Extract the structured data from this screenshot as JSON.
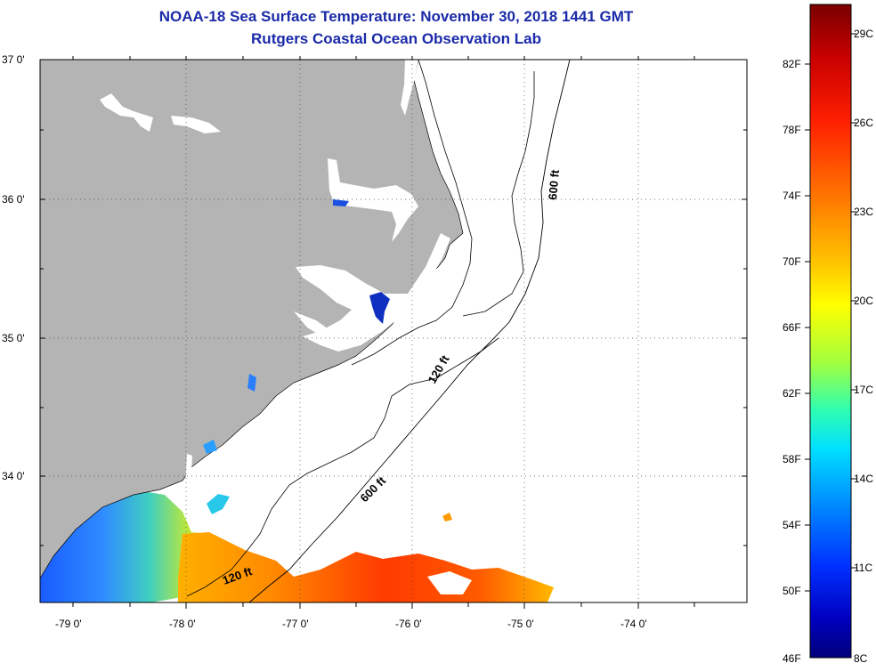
{
  "title": "NOAA-18 Sea Surface Temperature:  November 30, 2018 1441 GMT",
  "subtitle": "Rutgers Coastal Ocean Observation Lab",
  "axes": {
    "lat_labels": [
      "37 0'",
      "36 0'",
      "35 0'",
      "34 0'"
    ],
    "lon_labels": [
      "-79 0'",
      "-78 0'",
      "-77 0'",
      "-76 0'",
      "-75 0'",
      "-74 0'"
    ]
  },
  "contours": {
    "label_600_north": "600 ft",
    "label_120_mid": "120 ft",
    "label_600_south": "600 ft",
    "label_120_south": "120 ft"
  },
  "colorbar": {
    "fahrenheit_labels": [
      "82F",
      "78F",
      "74F",
      "70F",
      "66F",
      "62F",
      "58F",
      "54F",
      "50F",
      "46F"
    ],
    "celsius_labels": [
      "29C",
      "26C",
      "23C",
      "20C",
      "17C",
      "14C",
      "11C",
      "8C"
    ],
    "colors": [
      "#7a0000",
      "#c80000",
      "#ff2000",
      "#ff7a00",
      "#ffc800",
      "#ffff00",
      "#a0ff40",
      "#30ffb0",
      "#00e0ff",
      "#0090ff",
      "#0030ff",
      "#0000c0",
      "#00007a"
    ]
  },
  "map_colors": {
    "land": "#b4b4b4",
    "water_no_data": "#ffffff"
  }
}
